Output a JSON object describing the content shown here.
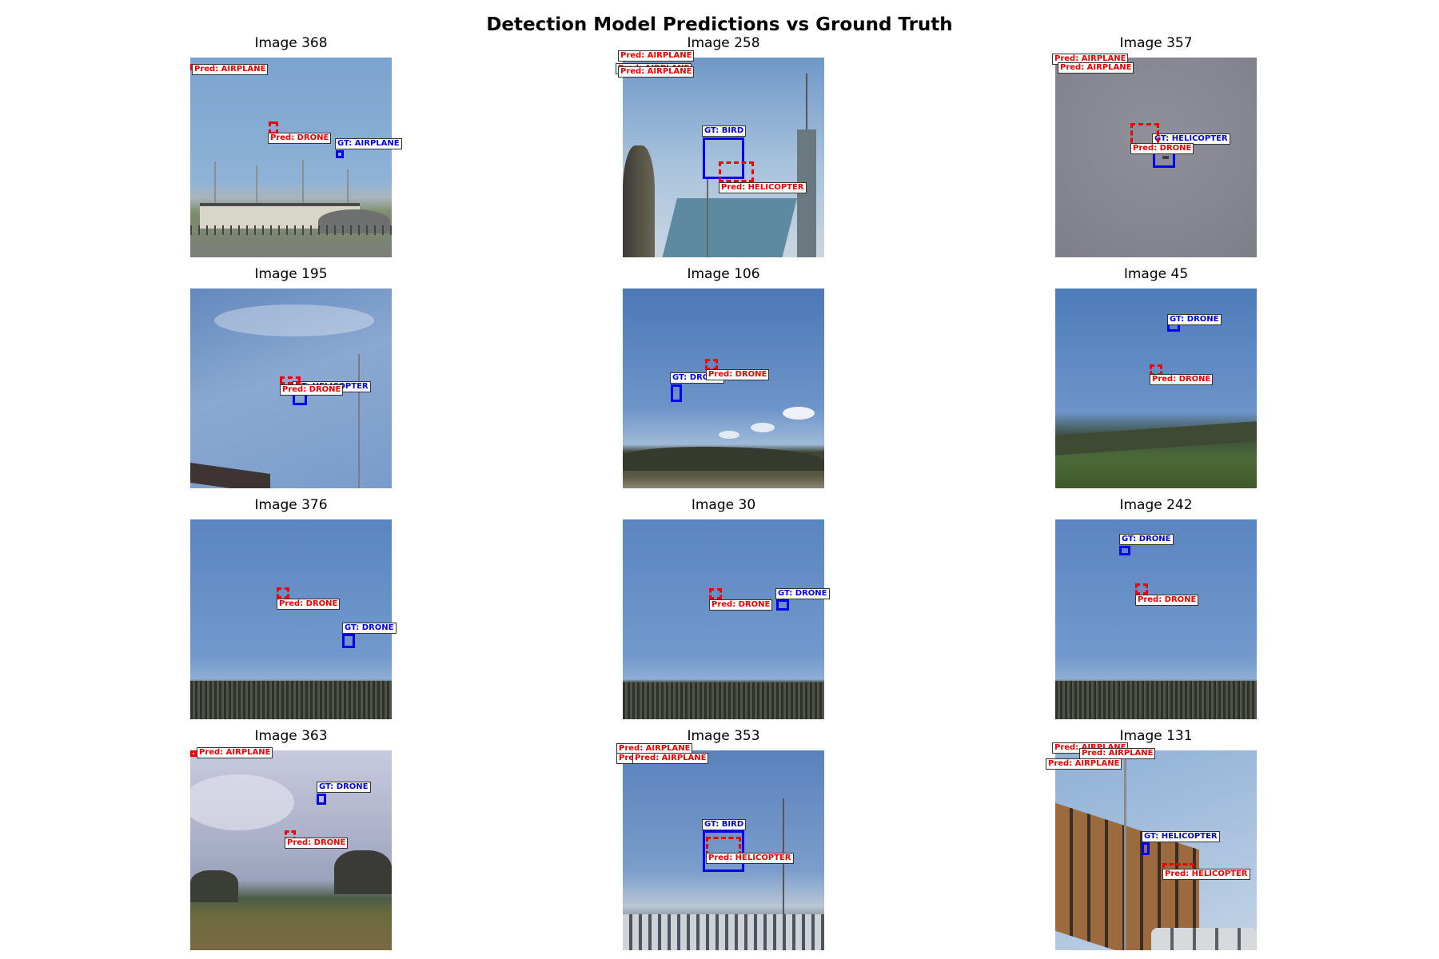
{
  "figure": {
    "title": "Detection Model Predictions vs Ground Truth"
  },
  "colors": {
    "ground_truth": "#0000ee",
    "prediction": "#ee0000"
  },
  "panels": [
    {
      "title": "Image 368",
      "labels": [
        "Pred: AIRPLANE",
        "Pred: DRONE",
        "GT: AIRPLANE"
      ]
    },
    {
      "title": "Image 258",
      "labels": [
        "Pred: AIRPLANE",
        "Pred: AIRPLANE",
        "Pred: AIRPLANE",
        "GT: BIRD",
        "Pred: HELICOPTER"
      ]
    },
    {
      "title": "Image 357",
      "labels": [
        "Pred: AIRPLANE",
        "Pred: AIRPLANE",
        "GT: HELICOPTER",
        "Pred: DRONE"
      ]
    },
    {
      "title": "Image 195",
      "labels": [
        "GT: HELICOPTER",
        "Pred: DRONE"
      ]
    },
    {
      "title": "Image 106",
      "labels": [
        "GT: DRONE",
        "Pred: DRONE"
      ]
    },
    {
      "title": "Image 45",
      "labels": [
        "GT: DRONE",
        "Pred: DRONE"
      ]
    },
    {
      "title": "Image 376",
      "labels": [
        "Pred: DRONE",
        "GT: DRONE"
      ]
    },
    {
      "title": "Image 30",
      "labels": [
        "GT: DRONE",
        "Pred: DRONE"
      ]
    },
    {
      "title": "Image 242",
      "labels": [
        "GT: DRONE",
        "Pred: DRONE"
      ]
    },
    {
      "title": "Image 363",
      "labels": [
        "Pred: AIRPLANE",
        "GT: DRONE",
        "Pred: DRONE"
      ]
    },
    {
      "title": "Image 353",
      "labels": [
        "Pred: AIRPLANE",
        "Pred: AIRPLANE",
        "Pred: AIRPLANE",
        "GT: BIRD",
        "Pred: HELICOPTER"
      ]
    },
    {
      "title": "Image 131",
      "labels": [
        "Pred: AIRPLANE",
        "Pred: AIRPLANE",
        "Pred: AIRPLANE",
        "GT: HELICOPTER",
        "Pred: HELICOPTER"
      ]
    }
  ]
}
